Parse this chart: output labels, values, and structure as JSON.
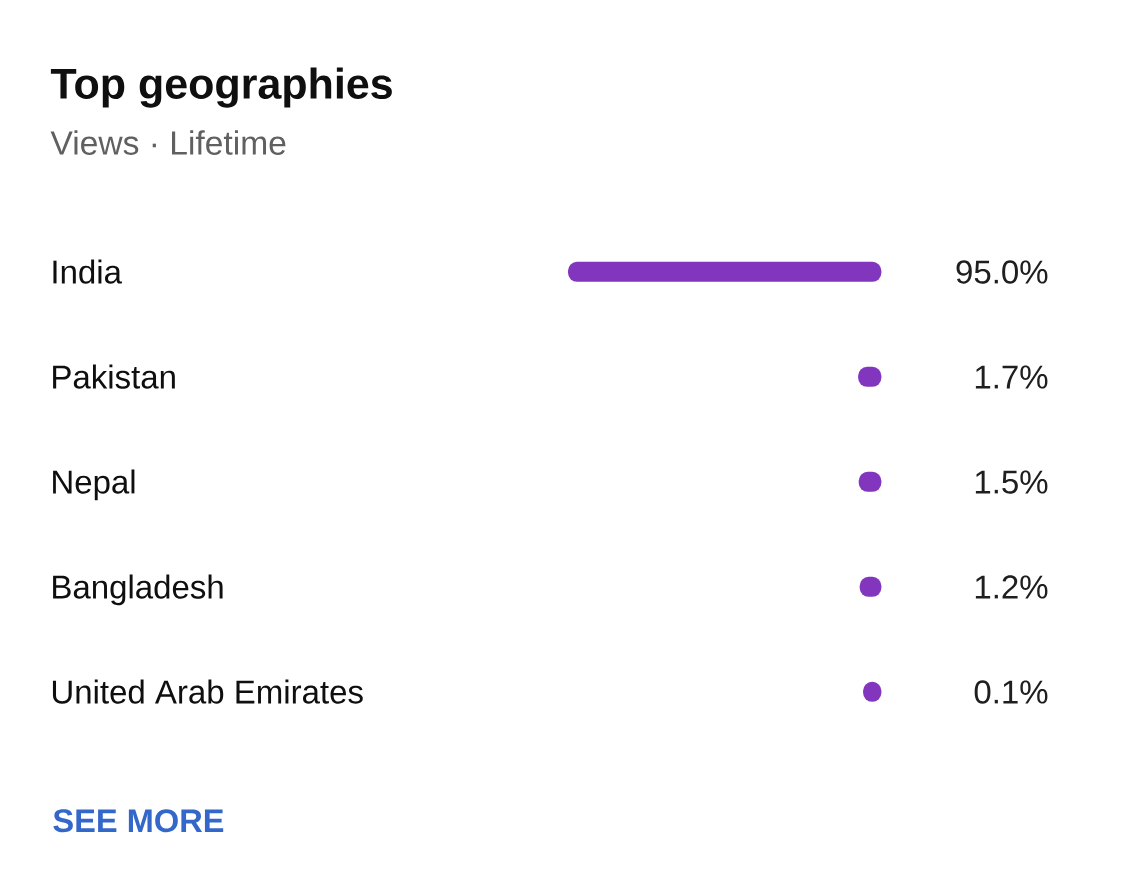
{
  "chart_data": {
    "type": "bar",
    "title": "Top geographies",
    "subtitle": "Views · Lifetime",
    "categories": [
      "India",
      "Pakistan",
      "Nepal",
      "Bangladesh",
      "United Arab Emirates"
    ],
    "values": [
      95.0,
      1.7,
      1.5,
      1.2,
      0.1
    ],
    "value_labels": [
      "95.0%",
      "1.7%",
      "1.5%",
      "1.2%",
      "0.1%"
    ],
    "color": "#8236bd",
    "orientation": "horizontal",
    "tick_labels": "y",
    "annotations": [
      "SEE MORE"
    ]
  }
}
